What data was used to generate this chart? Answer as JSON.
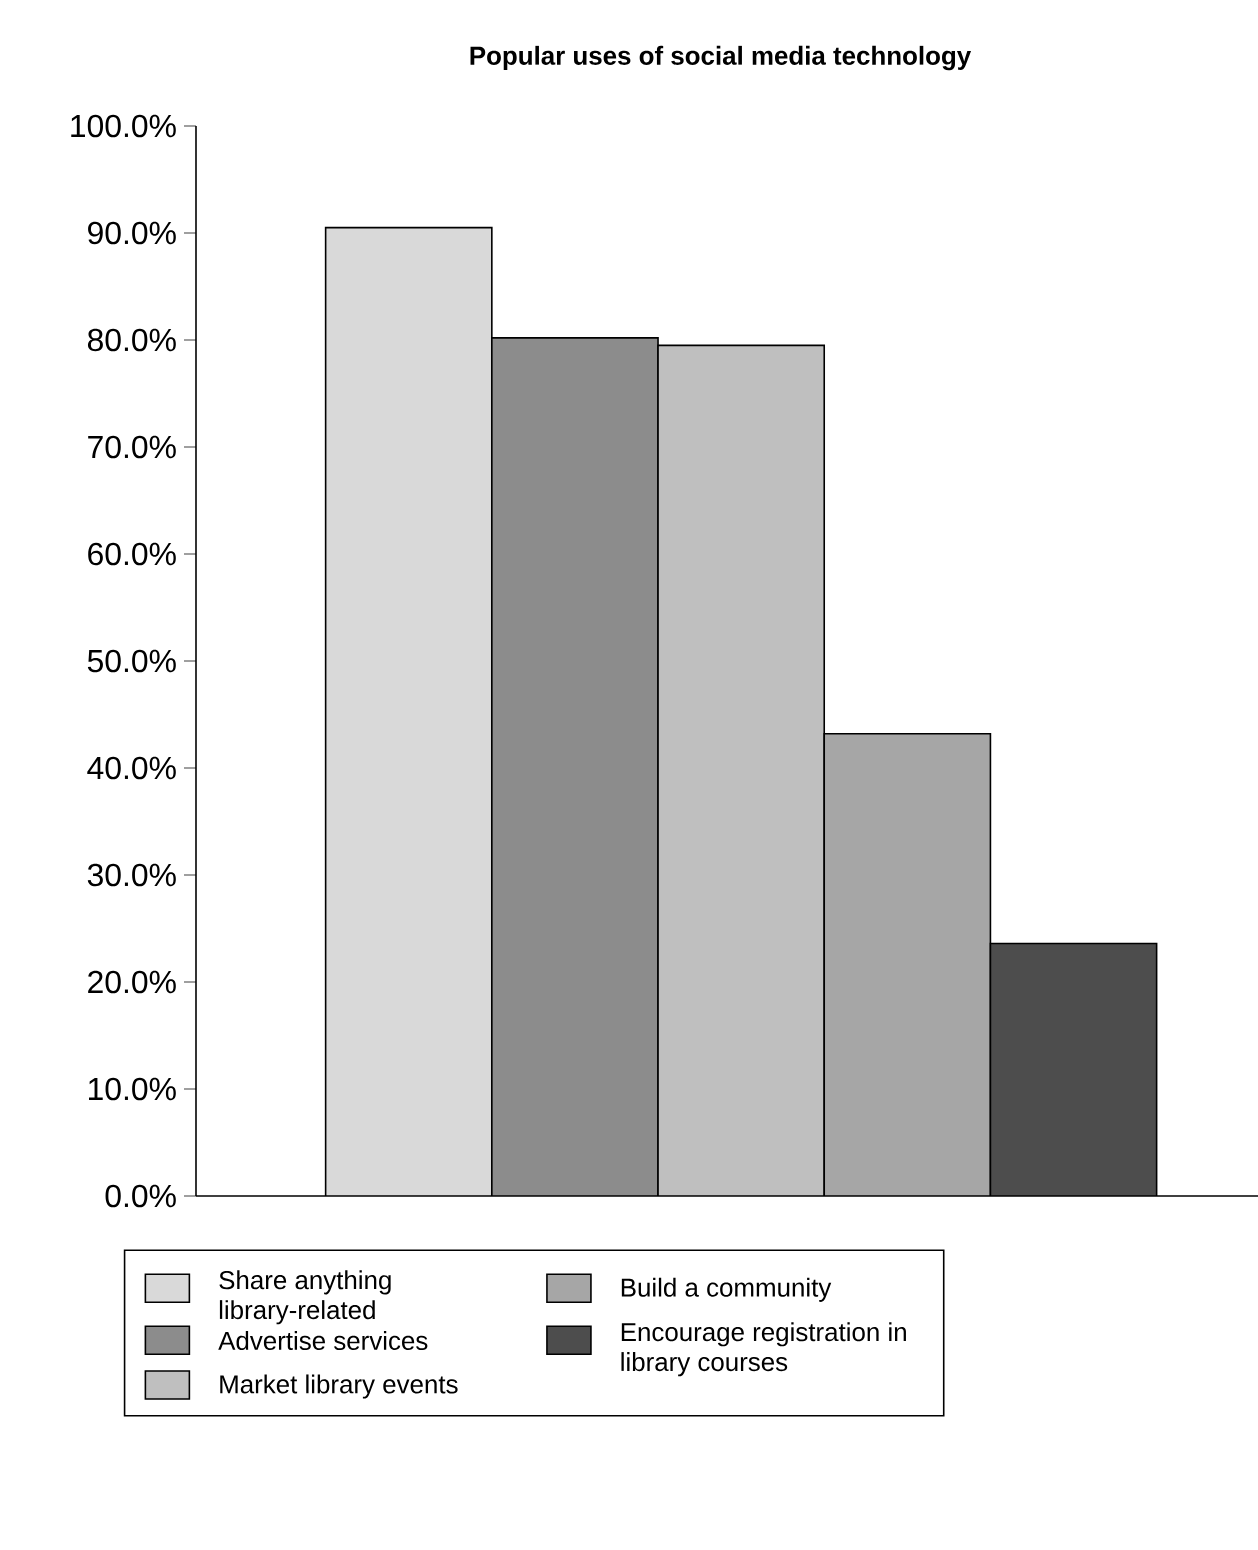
{
  "chart_data": {
    "type": "bar",
    "title": "Popular uses of social media technology",
    "categories": [
      null,
      null,
      null,
      null,
      null
    ],
    "series": [
      {
        "name": "Share anything library-related",
        "color": "#d9d9d9",
        "values": [
          90.5,
          null,
          null,
          null,
          null
        ]
      },
      {
        "name": "Advertise services",
        "color": "#8c8c8c",
        "values": [
          null,
          80.2,
          null,
          null,
          null
        ]
      },
      {
        "name": "Market library events",
        "color": "#bfbfbf",
        "values": [
          null,
          null,
          79.5,
          null,
          null
        ]
      },
      {
        "name": "Build a community",
        "color": "#a6a6a6",
        "values": [
          null,
          null,
          null,
          43.2,
          null
        ]
      },
      {
        "name": "Encourage registration in library courses",
        "color": "#4d4d4d",
        "values": [
          null,
          null,
          null,
          null,
          23.6
        ]
      }
    ],
    "ylim": [
      0,
      100
    ],
    "yticks": [
      {
        "value": 0,
        "label": "0.0%"
      },
      {
        "value": 10,
        "label": "10.0%"
      },
      {
        "value": 20,
        "label": "20.0%"
      },
      {
        "value": 30,
        "label": "30.0%"
      },
      {
        "value": 40,
        "label": "40.0%"
      },
      {
        "value": 50,
        "label": "50.0%"
      },
      {
        "value": 60,
        "label": "60.0%"
      },
      {
        "value": 70,
        "label": "70.0%"
      },
      {
        "value": 80,
        "label": "80.0%"
      },
      {
        "value": 90,
        "label": "90.0%"
      },
      {
        "value": 100,
        "label": "100.0%"
      }
    ],
    "tick_labels": "y",
    "grid": false,
    "legend": "bottom"
  }
}
